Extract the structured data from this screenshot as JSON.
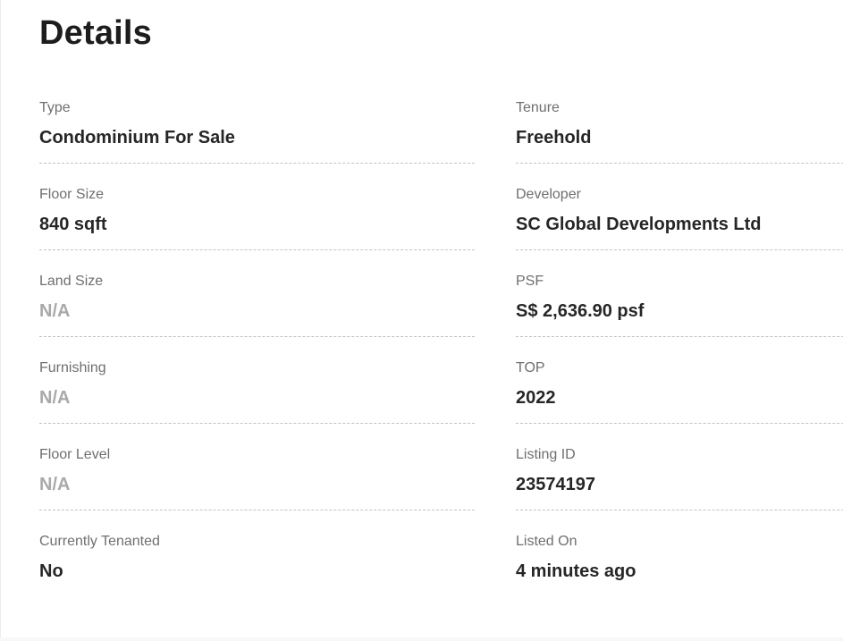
{
  "section": {
    "title": "Details"
  },
  "details": {
    "left": [
      {
        "label": "Type",
        "value": "Condominium For Sale",
        "muted": false
      },
      {
        "label": "Floor Size",
        "value": "840 sqft",
        "muted": false
      },
      {
        "label": "Land Size",
        "value": "N/A",
        "muted": true
      },
      {
        "label": "Furnishing",
        "value": "N/A",
        "muted": true
      },
      {
        "label": "Floor Level",
        "value": "N/A",
        "muted": true
      },
      {
        "label": "Currently Tenanted",
        "value": "No",
        "muted": false
      }
    ],
    "right": [
      {
        "label": "Tenure",
        "value": "Freehold",
        "muted": false
      },
      {
        "label": "Developer",
        "value": "SC Global Developments Ltd",
        "muted": false
      },
      {
        "label": "PSF",
        "value": "S$ 2,636.90 psf",
        "muted": false
      },
      {
        "label": "TOP",
        "value": "2022",
        "muted": false
      },
      {
        "label": "Listing ID",
        "value": "23574197",
        "muted": false
      },
      {
        "label": "Listed On",
        "value": "4 minutes ago",
        "muted": false
      }
    ]
  },
  "colors": {
    "title-color": "#1d1d1d",
    "label-color": "#6f6f6f",
    "value-color": "#262626",
    "muted-color": "#a9a9a9",
    "dash-color": "#c2c2c2",
    "page-bg": "#ffffff",
    "edge-color": "#ededed",
    "bottom-strip": "#f8f8f8"
  }
}
